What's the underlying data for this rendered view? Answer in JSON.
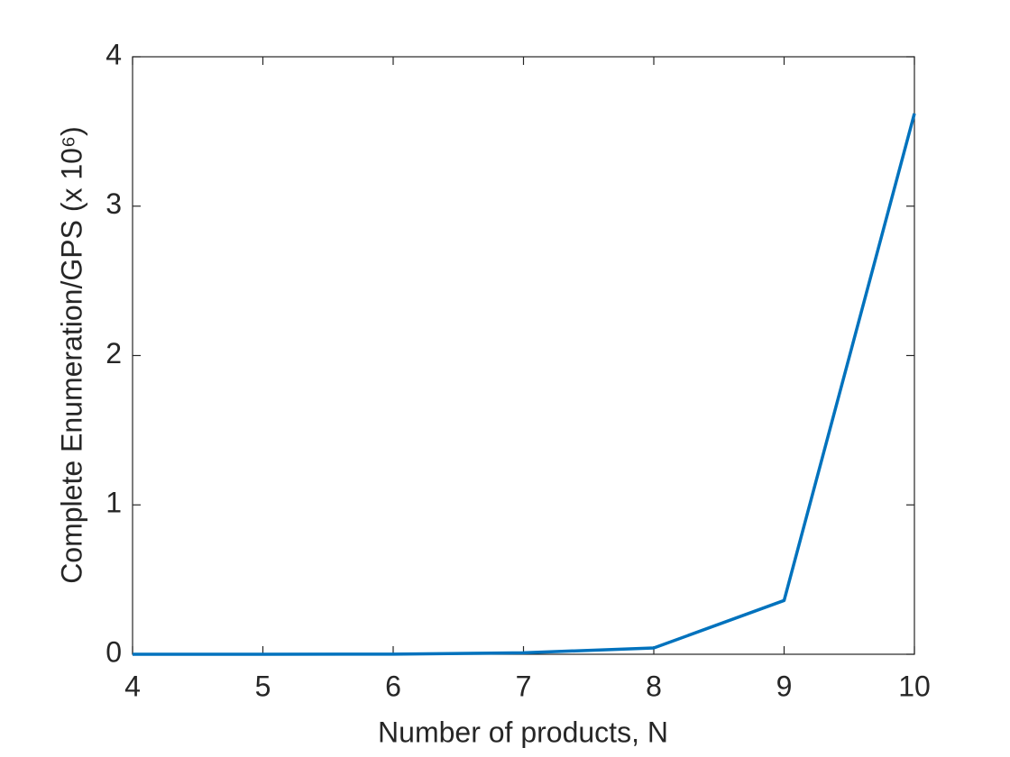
{
  "chart_data": {
    "type": "line",
    "xlabel": "Number of products, N",
    "ylabel": "Complete Enumeration/GPS (x 10⁶)",
    "x": [
      4,
      5,
      6,
      7,
      8,
      9,
      10
    ],
    "series": [
      {
        "name": "Complete Enumeration/GPS",
        "color": "#0072bd",
        "values": [
          0,
          0,
          0.001,
          0.01,
          0.042,
          0.36,
          3.62
        ]
      }
    ],
    "xlim": [
      4,
      10
    ],
    "xticks": [
      4,
      5,
      6,
      7,
      8,
      9,
      10
    ],
    "ylim": [
      0,
      4
    ],
    "yticks": [
      0,
      1,
      2,
      3,
      4
    ],
    "grid": false,
    "box": true
  }
}
